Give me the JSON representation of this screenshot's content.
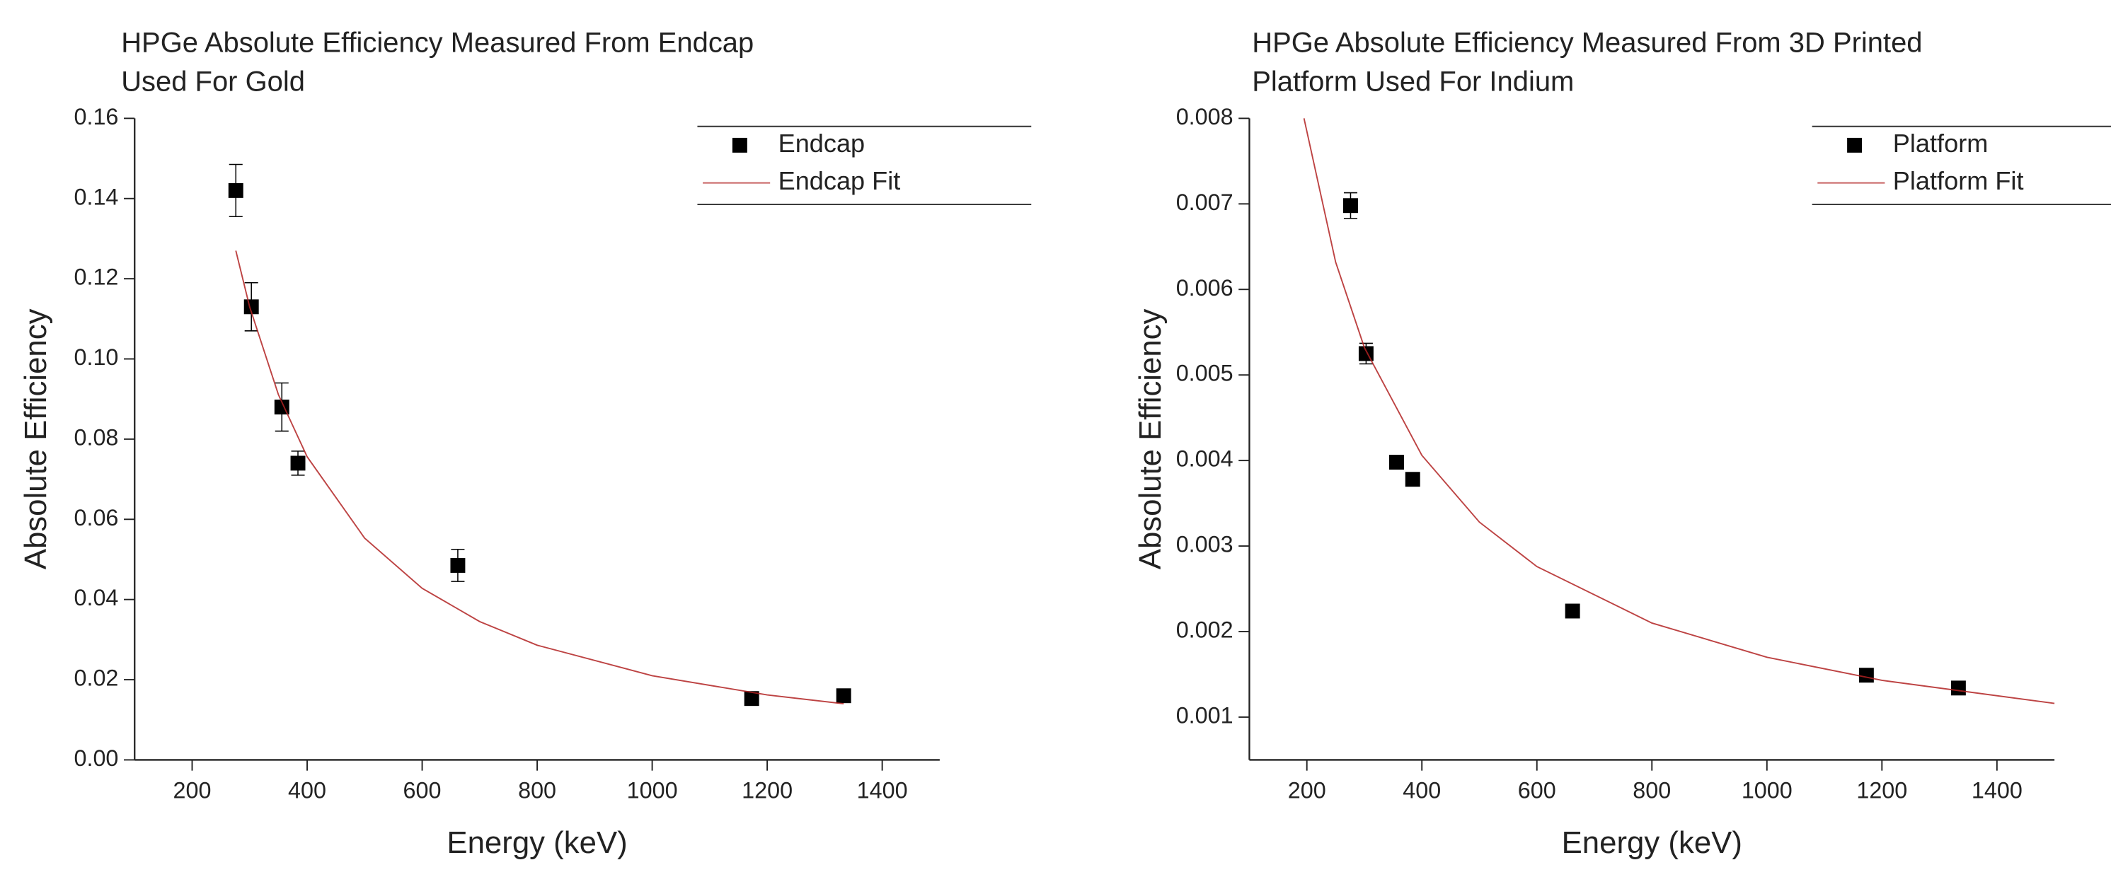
{
  "chart_data": [
    {
      "type": "scatter",
      "title": [
        "HPGe Absolute Efficiency Measured From Endcap",
        "Used For Gold"
      ],
      "x_label": "Energy (keV)",
      "y_label": "Absolute Efficiency",
      "xlim": [
        100,
        1500
      ],
      "xticks": [
        200,
        400,
        600,
        800,
        1000,
        1200,
        1400
      ],
      "ylim": [
        0,
        0.16
      ],
      "yticks": [
        {
          "value": 0,
          "label": "0.00"
        },
        0.02,
        0.04,
        0.06,
        0.08,
        {
          "value": 0.1,
          "label": "0.10"
        },
        0.12,
        0.14,
        0.16
      ],
      "legend": "upper right",
      "series": [
        {
          "name": "Endcap",
          "type": "scatter",
          "color": "#000000",
          "x": [
            276,
            303,
            356,
            384,
            662,
            1173,
            1333
          ],
          "values": [
            0.142,
            0.113,
            0.088,
            0.074,
            0.0485,
            0.0153,
            0.016
          ],
          "errors": [
            0.0065,
            0.006,
            0.006,
            0.003,
            0.004,
            0.001,
            0.001
          ]
        },
        {
          "name": "Endcap Fit",
          "type": "line",
          "color": "#b22222",
          "x": [
            276,
            300,
            350,
            400,
            500,
            600,
            700,
            800,
            1000,
            1200,
            1333
          ],
          "values": [
            0.127,
            0.113,
            0.0911,
            0.0756,
            0.0553,
            0.0428,
            0.0345,
            0.0286,
            0.021,
            0.0162,
            0.014
          ]
        }
      ]
    },
    {
      "type": "scatter",
      "title": [
        "HPGe Absolute Efficiency Measured From 3D Printed",
        "Platform Used For Indium"
      ],
      "x_label": "Energy (keV)",
      "y_label": "Absolute Efficiency",
      "xlim": [
        100,
        1500
      ],
      "xticks": [
        200,
        400,
        600,
        800,
        1000,
        1200,
        1400
      ],
      "ylim": [
        0.0005,
        0.008
      ],
      "yticks": [
        0.001,
        0.002,
        0.003,
        0.004,
        0.005,
        0.006,
        0.007,
        0.008
      ],
      "legend": "upper right",
      "series": [
        {
          "name": "Platform",
          "type": "scatter",
          "color": "#000000",
          "x": [
            276,
            303,
            356,
            384,
            662,
            1173,
            1333
          ],
          "values": [
            0.00698,
            0.00525,
            0.00398,
            0.00378,
            0.00224,
            0.00149,
            0.00134
          ],
          "errors": [
            0.00015,
            0.00012,
            8e-05,
            6e-05,
            4e-05,
            3e-05,
            3e-05
          ]
        },
        {
          "name": "Platform Fit",
          "type": "line",
          "color": "#b22222",
          "x": [
            195,
            250,
            300,
            400,
            500,
            600,
            800,
            1000,
            1200,
            1500
          ],
          "values": [
            0.008,
            0.00632,
            0.00532,
            0.00406,
            0.00328,
            0.00276,
            0.0021,
            0.0017,
            0.00143,
            0.00116
          ]
        }
      ]
    }
  ]
}
